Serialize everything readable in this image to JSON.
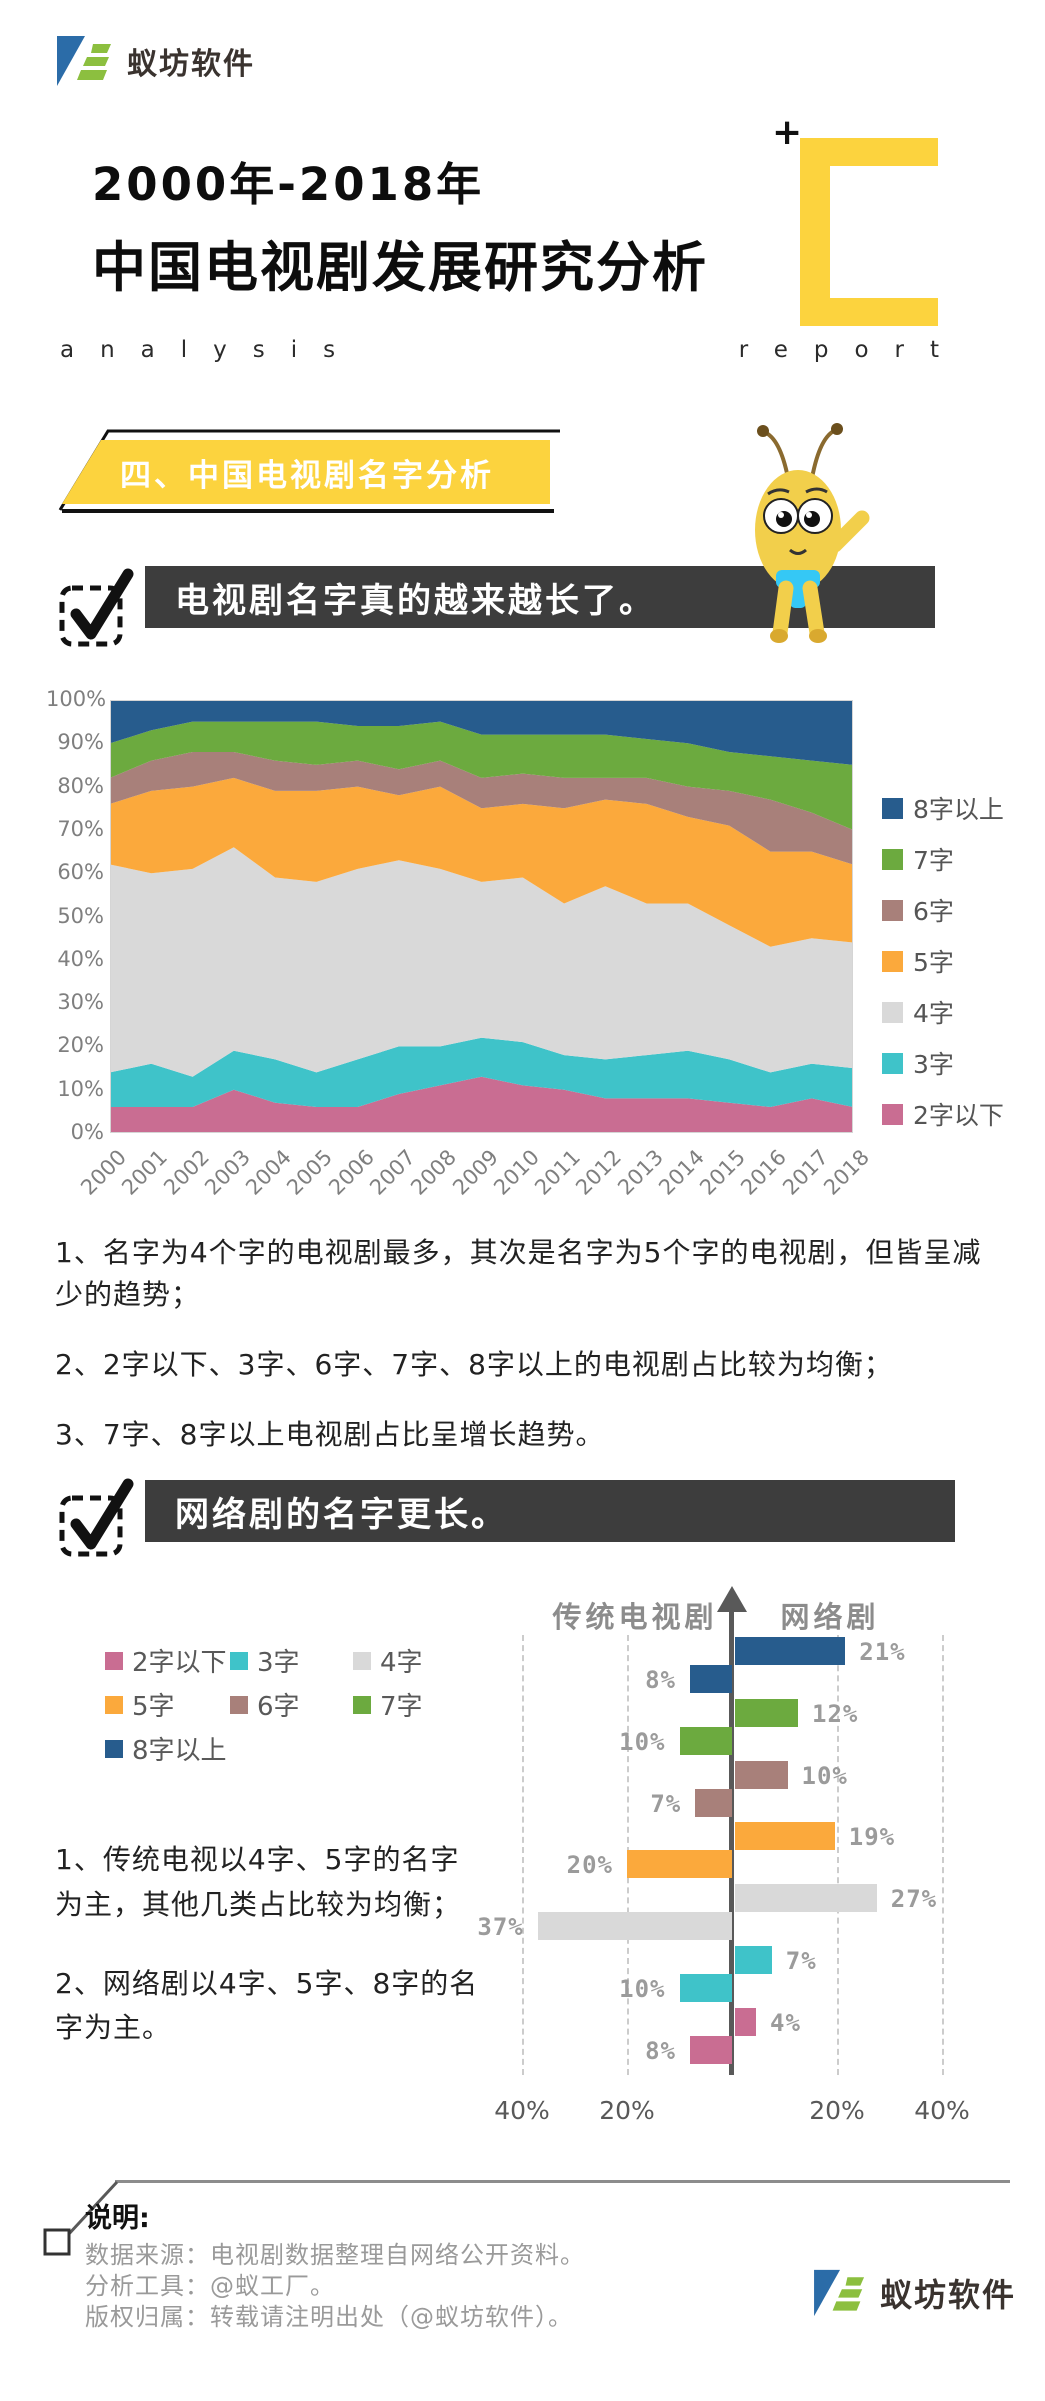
{
  "brand": {
    "name": "蚁坊软件"
  },
  "header": {
    "title_line1": "2000年-2018年",
    "title_line2": "中国电视剧发展研究分析",
    "subtitle_left": "analysis",
    "subtitle_right": "report",
    "plus": "+",
    "accent_yellow": "#fcd33e"
  },
  "section_banner": {
    "label": "四、中国电视剧名字分析"
  },
  "finding1": {
    "title": "电视剧名字真的越来越长了。"
  },
  "notes1": {
    "item1": "1、名字为4个字的电视剧最多，其次是名字为5个字的电视剧，但皆呈减少的趋势；",
    "item2": "2、2字以下、3字、6字、7字、8字以上的电视剧占比较为均衡；",
    "item3": "3、7字、8字以上电视剧占比呈增长趋势。"
  },
  "finding2": {
    "title": "网络剧的名字更长。"
  },
  "notes2": {
    "item1": "1、传统电视以4字、5字的名字为主，其他几类占比较为均衡；",
    "item2": "2、网络剧以4字、5字、8字的名字为主。"
  },
  "footer": {
    "label": "说明:",
    "line1": "数据来源：电视剧数据整理自网络公开资料。",
    "line2": "分析工具：@蚁工厂。",
    "line3": "版权归属：转载请注明出处（@蚁坊软件）。",
    "brand": "蚁坊软件"
  },
  "palette": {
    "2字以下": "#c96d92",
    "3字": "#3fc3c9",
    "4字": "#d9d9d9",
    "5字": "#fba93c",
    "6字": "#a8807a",
    "7字": "#6caa3f",
    "8字以上": "#275c8d"
  },
  "chart_data": [
    {
      "type": "area",
      "stacked_percent": true,
      "x": [
        2000,
        2001,
        2002,
        2003,
        2004,
        2005,
        2006,
        2007,
        2008,
        2009,
        2010,
        2011,
        2012,
        2013,
        2014,
        2015,
        2016,
        2017,
        2018
      ],
      "ylim": [
        0,
        100
      ],
      "ytick_step": 10,
      "grid": false,
      "legend_position": "right",
      "legend_top_to_bottom": [
        "8字以上",
        "7字",
        "6字",
        "5字",
        "4字",
        "3字",
        "2字以下"
      ],
      "series": [
        {
          "name": "2字以下",
          "values": [
            6,
            6,
            6,
            10,
            7,
            6,
            6,
            9,
            11,
            13,
            11,
            10,
            8,
            8,
            8,
            7,
            6,
            8,
            6
          ]
        },
        {
          "name": "3字",
          "values": [
            8,
            10,
            7,
            9,
            10,
            8,
            11,
            11,
            9,
            9,
            10,
            8,
            9,
            10,
            11,
            10,
            8,
            8,
            9
          ]
        },
        {
          "name": "4字",
          "values": [
            48,
            44,
            48,
            47,
            42,
            44,
            44,
            43,
            41,
            36,
            38,
            35,
            40,
            35,
            34,
            31,
            29,
            29,
            29
          ]
        },
        {
          "name": "5字",
          "values": [
            14,
            19,
            19,
            16,
            20,
            21,
            19,
            15,
            19,
            17,
            17,
            22,
            20,
            23,
            20,
            23,
            22,
            20,
            18
          ]
        },
        {
          "name": "6字",
          "values": [
            6,
            7,
            8,
            6,
            7,
            6,
            6,
            6,
            6,
            7,
            7,
            7,
            5,
            6,
            7,
            8,
            12,
            9,
            8
          ]
        },
        {
          "name": "7字",
          "values": [
            8,
            7,
            7,
            7,
            9,
            10,
            8,
            10,
            9,
            10,
            9,
            10,
            10,
            9,
            10,
            9,
            10,
            12,
            15
          ]
        },
        {
          "name": "8字以上",
          "values": [
            10,
            7,
            5,
            5,
            5,
            5,
            6,
            6,
            5,
            8,
            8,
            8,
            8,
            9,
            10,
            12,
            13,
            14,
            15
          ]
        }
      ]
    },
    {
      "type": "bar",
      "orientation": "diverging-horizontal",
      "left_header": "传统电视剧",
      "right_header": "网络剧",
      "categories_top_to_bottom": [
        "8字以上",
        "7字",
        "6字",
        "5字",
        "4字",
        "3字",
        "2字以下"
      ],
      "series": [
        {
          "name": "网络剧",
          "side": "right",
          "values_pct": [
            21,
            12,
            10,
            19,
            27,
            7,
            4
          ]
        },
        {
          "name": "传统电视剧",
          "side": "left",
          "values_pct": [
            8,
            10,
            7,
            20,
            37,
            10,
            8
          ]
        }
      ],
      "axis_tick_labels": [
        "40%",
        "20%",
        "20%",
        "40%"
      ],
      "axis_tick_values": [
        -40,
        -20,
        20,
        40
      ],
      "legend_grid": [
        [
          "2字以下",
          "3字",
          "4字"
        ],
        [
          "5字",
          "6字",
          "7字"
        ],
        [
          "8字以上"
        ]
      ]
    }
  ]
}
